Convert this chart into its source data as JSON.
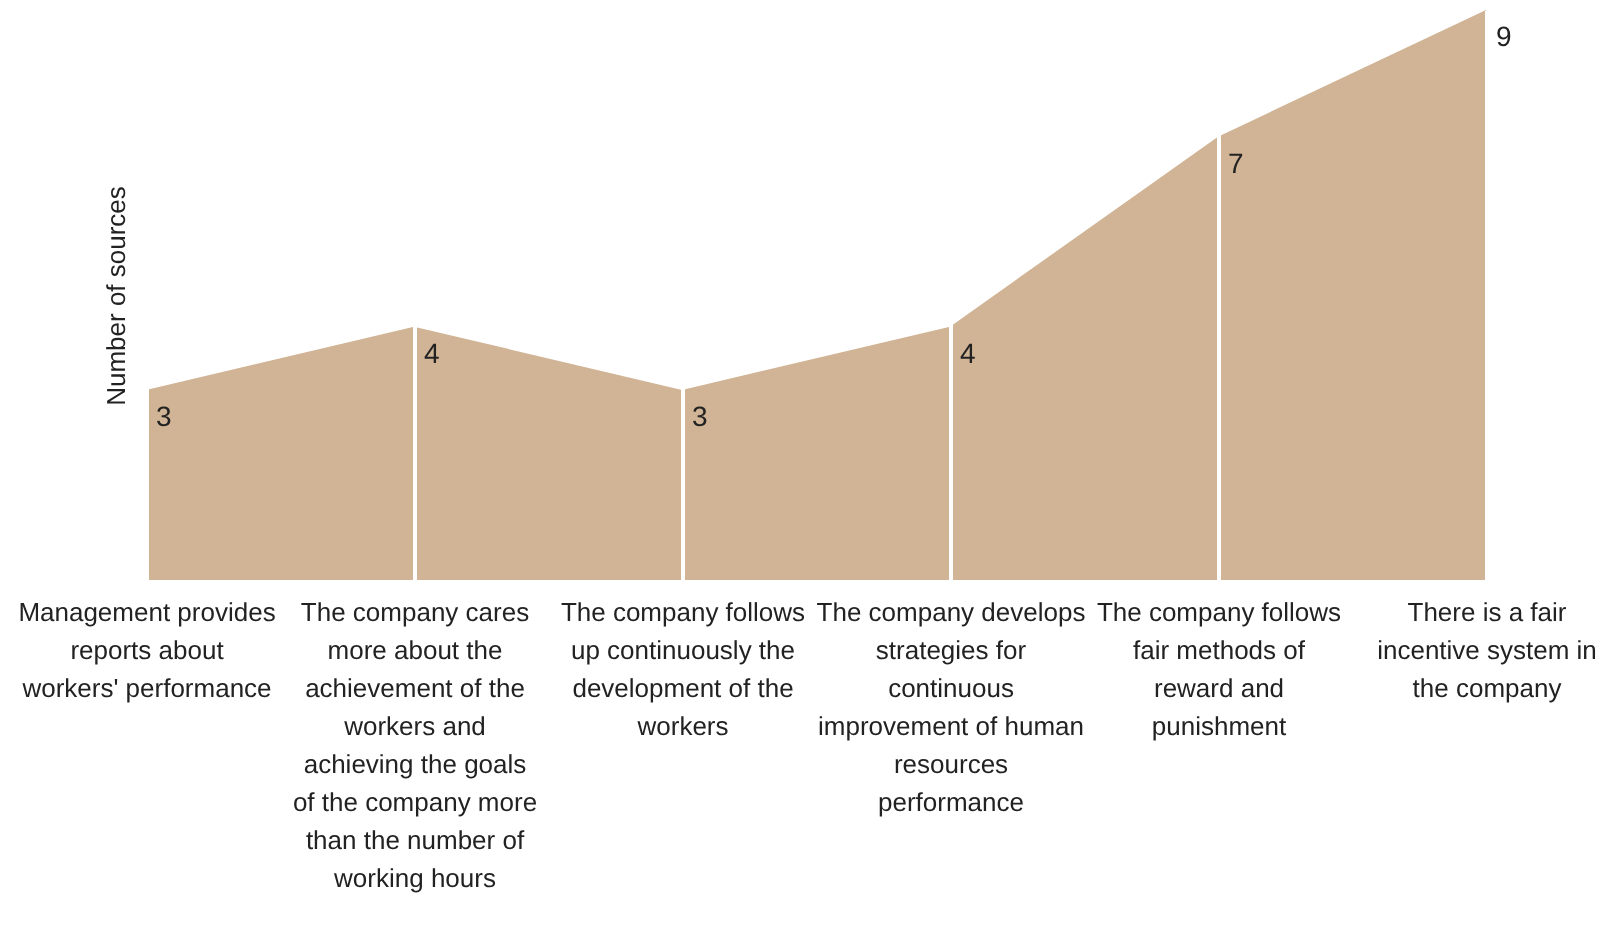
{
  "chart_data": {
    "type": "area",
    "ylabel": "Number of  sources",
    "categories": [
      "Management provides reports about workers' performance",
      "The company cares more about the achievement of the workers and achieving the goals of the company more than the number of working hours",
      "The company follows up continuously the development of the workers",
      "The company develops strategies for continuous improvement of human resources performance",
      "The company follows fair methods of reward and punishment",
      "There is a fair incentive system in the company"
    ],
    "series": [
      {
        "color": "#d0b495",
        "values": [
          3,
          4,
          3,
          4,
          7,
          9
        ]
      }
    ],
    "data_labels": true,
    "grid": "x"
  }
}
